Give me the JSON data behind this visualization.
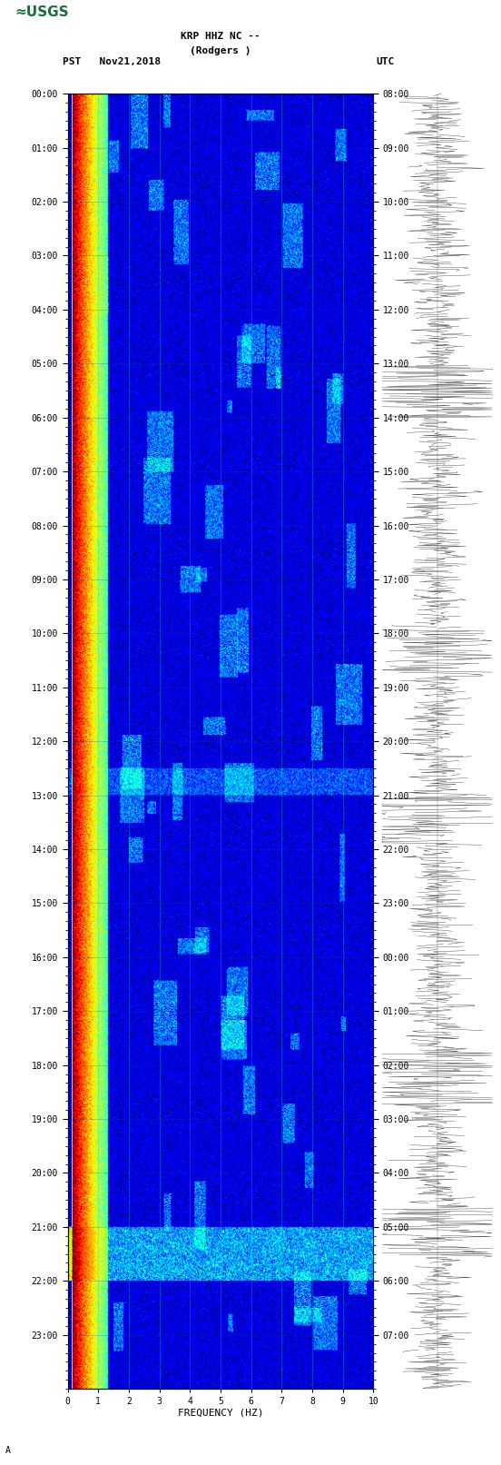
{
  "title_line1": "KRP HHZ NC --",
  "title_line2": "(Rodgers )",
  "left_label": "PST   Nov21,2018",
  "right_label": "UTC",
  "xlabel": "FREQUENCY (HZ)",
  "freq_min": 0,
  "freq_max": 10,
  "freq_ticks": [
    0,
    1,
    2,
    3,
    4,
    5,
    6,
    7,
    8,
    9,
    10
  ],
  "time_hours": 24,
  "left_time_labels": [
    "00:00",
    "01:00",
    "02:00",
    "03:00",
    "04:00",
    "05:00",
    "06:00",
    "07:00",
    "08:00",
    "09:00",
    "10:00",
    "11:00",
    "12:00",
    "13:00",
    "14:00",
    "15:00",
    "16:00",
    "17:00",
    "18:00",
    "19:00",
    "20:00",
    "21:00",
    "22:00",
    "23:00"
  ],
  "right_time_labels": [
    "08:00",
    "09:00",
    "10:00",
    "11:00",
    "12:00",
    "13:00",
    "14:00",
    "15:00",
    "16:00",
    "17:00",
    "18:00",
    "19:00",
    "20:00",
    "21:00",
    "22:00",
    "23:00",
    "00:00",
    "01:00",
    "02:00",
    "03:00",
    "04:00",
    "05:00",
    "06:00",
    "07:00"
  ],
  "bg_color": "#ffffff",
  "colormap": "jet",
  "usgs_green": "#1a6e39",
  "tick_label_fontsize": 7,
  "header_fontsize": 8
}
